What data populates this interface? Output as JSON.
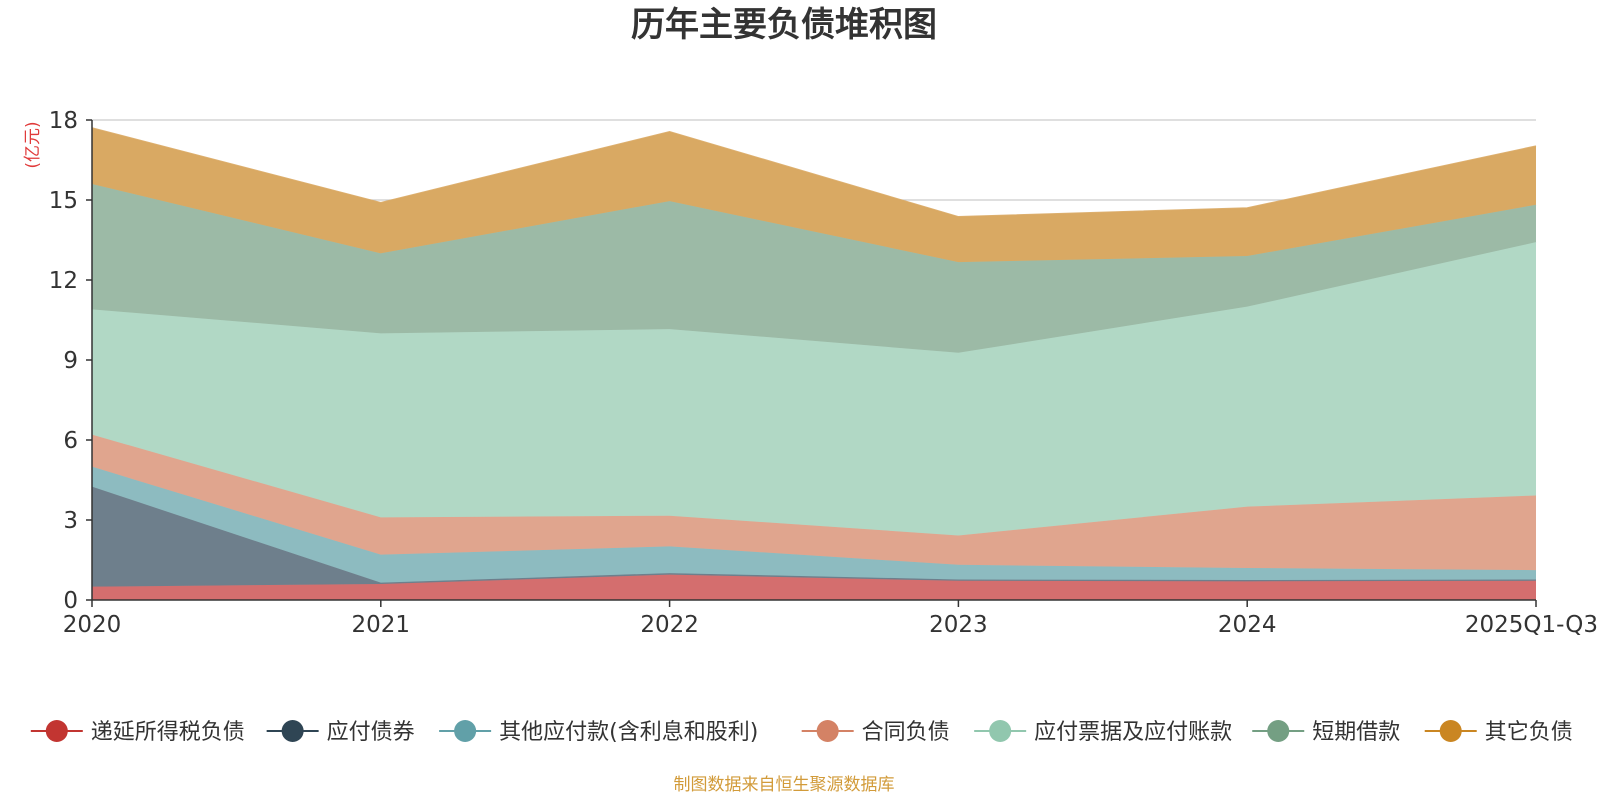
{
  "chart_data": {
    "type": "area",
    "stacked": true,
    "title": "历年主要负债堆积图",
    "unit_label": "(亿元)",
    "categories": [
      "2020",
      "2021",
      "2022",
      "2023",
      "2024",
      "2025Q1-Q3"
    ],
    "ylim": [
      0,
      18
    ],
    "yticks": [
      "0",
      "3",
      "6",
      "9",
      "12",
      "15",
      "18"
    ],
    "grid": true,
    "legend_position": "bottom",
    "series": [
      {
        "name": "递延所得税负债",
        "color": "#c23531",
        "fill": "#d46e6e",
        "values": [
          0.5,
          0.6,
          0.95,
          0.72,
          0.7,
          0.72
        ]
      },
      {
        "name": "应付债券",
        "color": "#2f4554",
        "fill": "#6e7f8c",
        "values": [
          3.75,
          0.05,
          0.06,
          0.05,
          0.05,
          0.05
        ]
      },
      {
        "name": "其他应付款(含利息和股利)",
        "color": "#61a0a8",
        "fill": "#8dbbc0",
        "values": [
          0.75,
          1.05,
          1.0,
          0.55,
          0.45,
          0.35
        ]
      },
      {
        "name": "合同负债",
        "color": "#d48265",
        "fill": "#e0a58e",
        "values": [
          1.2,
          1.4,
          1.15,
          1.1,
          2.3,
          2.8
        ]
      },
      {
        "name": "应付票据及应付账款",
        "color": "#91c7ae",
        "fill": "#b1d8c5",
        "values": [
          4.7,
          6.9,
          7.0,
          6.85,
          7.5,
          9.5
        ]
      },
      {
        "name": "短期借款",
        "color": "#749f83",
        "fill": "#9cbaa6",
        "values": [
          4.7,
          3.0,
          4.8,
          3.4,
          1.9,
          1.4
        ]
      },
      {
        "name": "其它负债",
        "color": "#ca8622",
        "fill": "#d9a963",
        "values": [
          2.1,
          1.9,
          2.6,
          1.7,
          1.8,
          2.2
        ]
      }
    ]
  },
  "source_note": "制图数据来自恒生聚源数据库"
}
